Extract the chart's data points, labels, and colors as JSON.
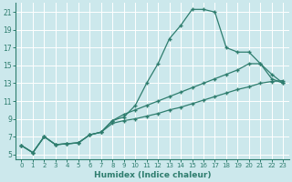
{
  "xlabel": "Humidex (Indice chaleur)",
  "bg_color": "#cce8ec",
  "line_color": "#2e7d6e",
  "grid_color": "#ffffff",
  "xlim": [
    -0.5,
    23.5
  ],
  "ylim": [
    4.5,
    22.0
  ],
  "xticks": [
    0,
    1,
    2,
    3,
    4,
    5,
    6,
    7,
    8,
    9,
    10,
    11,
    12,
    13,
    14,
    15,
    16,
    17,
    18,
    19,
    20,
    21,
    22,
    23
  ],
  "yticks": [
    5,
    7,
    9,
    11,
    13,
    15,
    17,
    19,
    21
  ],
  "line1": {
    "x": [
      0,
      1,
      2,
      3,
      4,
      5,
      6,
      7,
      8,
      9,
      10,
      11,
      12,
      13,
      14,
      15,
      16,
      17,
      18,
      19,
      20,
      21,
      22,
      23
    ],
    "y": [
      6.0,
      5.2,
      7.0,
      6.1,
      6.2,
      6.3,
      7.2,
      7.5,
      8.8,
      9.2,
      10.5,
      13.0,
      15.2,
      18.0,
      19.5,
      21.3,
      21.3,
      21.0,
      17.0,
      16.5,
      16.5,
      15.2,
      14.0,
      13.0
    ]
  },
  "line2": {
    "x": [
      0,
      1,
      2,
      3,
      4,
      5,
      6,
      7,
      8,
      9,
      10,
      11,
      12,
      13,
      14,
      15,
      16,
      17,
      18,
      19,
      20,
      21,
      22,
      23
    ],
    "y": [
      6.0,
      5.2,
      7.0,
      6.1,
      6.2,
      6.3,
      7.2,
      7.5,
      8.8,
      9.5,
      10.0,
      10.5,
      11.0,
      11.5,
      12.0,
      12.5,
      13.0,
      13.5,
      14.0,
      14.5,
      15.2,
      15.2,
      13.5,
      13.0
    ]
  },
  "line3": {
    "x": [
      0,
      1,
      2,
      3,
      4,
      5,
      6,
      7,
      8,
      9,
      10,
      11,
      12,
      13,
      14,
      15,
      16,
      17,
      18,
      19,
      20,
      21,
      22,
      23
    ],
    "y": [
      6.0,
      5.2,
      7.0,
      6.1,
      6.2,
      6.3,
      7.2,
      7.5,
      8.5,
      8.8,
      9.0,
      9.3,
      9.6,
      10.0,
      10.3,
      10.7,
      11.1,
      11.5,
      11.9,
      12.3,
      12.6,
      13.0,
      13.2,
      13.3
    ]
  }
}
